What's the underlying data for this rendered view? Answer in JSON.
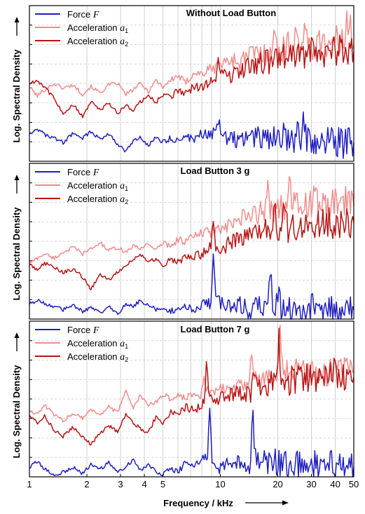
{
  "chart_data": {
    "type": "line",
    "xscale": "log",
    "xlim": [
      1,
      50
    ],
    "x_ticks": [
      1,
      2,
      3,
      4,
      5,
      10,
      20,
      30,
      40,
      50
    ],
    "xlabel": "Frequency / kHz",
    "ylabel": "Log. Spectral Density",
    "y_tick_labels": false,
    "grid": true,
    "legend_position": "top-left",
    "colors": {
      "force": "#1f1fbf",
      "acc1": "#f08c8c",
      "acc2": "#b81414"
    },
    "legend": {
      "force": {
        "name": "Force ",
        "symbol": "F"
      },
      "acc1": {
        "name": "Acceleration ",
        "symbol": "a",
        "sub": "1"
      },
      "acc2": {
        "name": "Acceleration ",
        "symbol": "a",
        "sub": "2"
      }
    },
    "panels": [
      {
        "title": "Without Load Button",
        "ylim": [
          0,
          10
        ],
        "series": [
          {
            "key": "acc1",
            "peaks": [
              [
                9.8,
                0.5
              ],
              [
                19.2,
                0.6
              ],
              [
                25,
                1.6
              ],
              [
                28,
                0.8
              ],
              [
                34.5,
                0.9
              ],
              [
                40,
                0.7
              ],
              [
                46,
                2.1
              ],
              [
                48,
                1.5
              ]
            ],
            "x": [
              1,
              1.1,
              1.2,
              1.35,
              1.5,
              1.7,
              1.9,
              2.1,
              2.35,
              2.6,
              2.9,
              3.2,
              3.5,
              3.8,
              4.2,
              4.6,
              5,
              5.5,
              6,
              6.6,
              7.2,
              8,
              8.8,
              9.6,
              10.5,
              11.5,
              12.5,
              14,
              15.5,
              17,
              18.5,
              20,
              22,
              24,
              26,
              28,
              30,
              33,
              36,
              40,
              44,
              48,
              50
            ],
            "y": [
              4.8,
              4.2,
              4.6,
              5.0,
              4.7,
              4.9,
              4.3,
              4.8,
              4.4,
              4.9,
              5.0,
              4.3,
              4.6,
              5.0,
              4.5,
              5.2,
              4.8,
              5.2,
              5.5,
              5.0,
              5.7,
              5.6,
              5.9,
              6.0,
              6.3,
              6.6,
              6.3,
              6.8,
              7.0,
              6.8,
              7.4,
              7.2,
              7.3,
              7.5,
              7.2,
              7.6,
              7.4,
              7.6,
              7.5,
              7.3,
              7.7,
              7.8,
              7.5
            ]
          },
          {
            "key": "acc2",
            "peaks": [
              [
                9.8,
                1.2
              ],
              [
                19.5,
                1.8
              ],
              [
                30,
                0.5
              ],
              [
                42,
                0.6
              ]
            ],
            "x": [
              1,
              1.1,
              1.2,
              1.35,
              1.5,
              1.7,
              1.9,
              2.1,
              2.35,
              2.6,
              2.9,
              3.2,
              3.5,
              3.8,
              4.2,
              4.6,
              5,
              5.5,
              6,
              6.6,
              7.2,
              8,
              8.8,
              9.6,
              10.5,
              11.5,
              12.5,
              14,
              15.5,
              17,
              18.5,
              20,
              22,
              24,
              26,
              28,
              30,
              33,
              36,
              40,
              44,
              48,
              50
            ],
            "y": [
              5.0,
              5.2,
              4.8,
              4.0,
              3.1,
              3.6,
              2.9,
              3.8,
              3.3,
              3.7,
              3.1,
              3.6,
              3.3,
              3.8,
              4.2,
              3.8,
              4.3,
              4.1,
              4.6,
              4.3,
              4.8,
              4.7,
              5.2,
              5.4,
              5.6,
              5.5,
              5.9,
              6.0,
              6.2,
              6.4,
              6.3,
              6.6,
              6.7,
              6.6,
              7.0,
              6.8,
              7.0,
              7.1,
              6.9,
              7.1,
              7.0,
              7.3,
              7.0
            ]
          },
          {
            "key": "force",
            "peaks": [
              [
                9.8,
                0.8
              ],
              [
                27.5,
                1.2
              ]
            ],
            "x": [
              1,
              1.1,
              1.2,
              1.35,
              1.5,
              1.7,
              1.9,
              2.1,
              2.35,
              2.6,
              2.9,
              3.2,
              3.5,
              3.8,
              4.2,
              4.6,
              5,
              5.5,
              6,
              6.6,
              7.2,
              8,
              8.8,
              9.6,
              10.5,
              11.5,
              12.5,
              14,
              15.5,
              17,
              18.5,
              20,
              22,
              24,
              26,
              28,
              30,
              33,
              36,
              40,
              44,
              48,
              50
            ],
            "y": [
              1.8,
              2.1,
              1.7,
              1.5,
              1.2,
              1.8,
              1.5,
              1.9,
              1.4,
              1.8,
              1.1,
              0.6,
              1.3,
              1.5,
              1.0,
              1.6,
              1.2,
              1.5,
              1.3,
              1.6,
              1.4,
              1.8,
              1.6,
              2.0,
              1.5,
              1.6,
              1.3,
              1.5,
              1.6,
              1.4,
              1.5,
              1.3,
              1.6,
              1.4,
              1.7,
              1.4,
              1.3,
              1.5,
              1.2,
              1.3,
              1.1,
              1.3,
              1.2
            ]
          }
        ]
      },
      {
        "title": "Load Button 3 g",
        "ylim": [
          0,
          10
        ],
        "series": [
          {
            "key": "acc1",
            "peaks": [
              [
                17.8,
                1.6
              ],
              [
                19.8,
                1.0
              ],
              [
                23,
                1.2
              ],
              [
                31,
                0.5
              ]
            ],
            "x": [
              1,
              1.1,
              1.2,
              1.35,
              1.5,
              1.7,
              1.9,
              2.1,
              2.35,
              2.6,
              2.9,
              3.2,
              3.5,
              3.8,
              4.2,
              4.6,
              5,
              5.5,
              6,
              6.6,
              7.2,
              8,
              8.8,
              9.6,
              10.5,
              11.5,
              12.5,
              14,
              15.5,
              17,
              18.5,
              20,
              22,
              24,
              26,
              28,
              30,
              33,
              36,
              40,
              44,
              48,
              50
            ],
            "y": [
              3.6,
              3.9,
              4.2,
              3.9,
              4.3,
              4.6,
              4.2,
              4.5,
              4.9,
              4.4,
              4.6,
              4.3,
              4.7,
              4.5,
              4.9,
              4.4,
              4.9,
              4.7,
              5.1,
              5.0,
              5.3,
              5.5,
              5.6,
              5.7,
              5.8,
              6.0,
              6.4,
              6.5,
              6.8,
              6.9,
              7.1,
              7.0,
              7.2,
              7.4,
              7.2,
              7.5,
              7.3,
              7.5,
              7.2,
              7.4,
              7.6,
              7.5,
              7.3
            ]
          },
          {
            "key": "acc2",
            "peaks": [
              [
                9.2,
                1.9
              ],
              [
                19.2,
                1.5
              ],
              [
                21.5,
                1.3
              ],
              [
                32,
                0.4
              ]
            ],
            "x": [
              1,
              1.1,
              1.2,
              1.35,
              1.5,
              1.7,
              1.9,
              2.1,
              2.35,
              2.6,
              2.9,
              3.2,
              3.5,
              3.8,
              4.2,
              4.6,
              5,
              5.5,
              6,
              6.6,
              7.2,
              8,
              8.8,
              9.6,
              10.5,
              11.5,
              12.5,
              14,
              15.5,
              17,
              18.5,
              20,
              22,
              24,
              26,
              28,
              30,
              33,
              36,
              40,
              44,
              48,
              50
            ],
            "y": [
              3.5,
              3.2,
              3.6,
              3.3,
              3.0,
              3.2,
              2.7,
              1.9,
              2.9,
              2.5,
              3.0,
              3.5,
              3.8,
              4.2,
              3.6,
              3.9,
              3.5,
              3.8,
              3.7,
              4.0,
              3.9,
              4.2,
              4.7,
              4.5,
              4.6,
              5.0,
              5.3,
              5.2,
              5.6,
              5.9,
              5.8,
              5.5,
              5.8,
              6.0,
              5.9,
              5.8,
              6.2,
              6.0,
              6.3,
              6.0,
              6.2,
              6.1,
              6.2
            ]
          },
          {
            "key": "force",
            "peaks": [
              [
                9.2,
                2.8
              ],
              [
                18.2,
                2.4
              ],
              [
                20.2,
                1.6
              ]
            ],
            "x": [
              1,
              1.1,
              1.2,
              1.35,
              1.5,
              1.7,
              1.9,
              2.1,
              2.35,
              2.6,
              2.9,
              3.2,
              3.5,
              3.8,
              4.2,
              4.6,
              5,
              5.5,
              6,
              6.6,
              7.2,
              8,
              8.8,
              9.6,
              10.5,
              11.5,
              12.5,
              14,
              15.5,
              17,
              18.5,
              20,
              22,
              24,
              26,
              28,
              30,
              33,
              36,
              40,
              44,
              48,
              50
            ],
            "y": [
              1.0,
              1.2,
              1.0,
              0.8,
              0.6,
              0.9,
              0.5,
              0.7,
              0.4,
              0.8,
              0.3,
              1.0,
              0.8,
              1.2,
              0.9,
              0.6,
              0.8,
              0.5,
              0.7,
              0.9,
              0.6,
              0.9,
              1.0,
              1.3,
              0.8,
              0.7,
              0.9,
              0.6,
              0.8,
              0.7,
              1.0,
              0.8,
              0.6,
              0.9,
              0.7,
              0.6,
              0.8,
              0.5,
              0.7,
              0.4,
              0.6,
              0.5,
              0.6
            ]
          }
        ]
      },
      {
        "title": "Load Button 7 g",
        "ylim": [
          0,
          10
        ],
        "series": [
          {
            "key": "acc1",
            "peaks": [
              [
                8.2,
                1.4
              ],
              [
                14.5,
                1.3
              ],
              [
                20.5,
                2.4
              ],
              [
                25,
                0.8
              ]
            ],
            "x": [
              1,
              1.1,
              1.2,
              1.35,
              1.5,
              1.7,
              1.9,
              2.1,
              2.35,
              2.6,
              2.9,
              3.2,
              3.5,
              3.8,
              4.2,
              4.6,
              5,
              5.5,
              6,
              6.6,
              7.2,
              8,
              8.8,
              9.6,
              10.5,
              11.5,
              12.5,
              14,
              15.5,
              17,
              18.5,
              20,
              22,
              24,
              26,
              28,
              30,
              33,
              36,
              40,
              44,
              48,
              50
            ],
            "y": [
              4.3,
              4.0,
              4.6,
              4.0,
              3.6,
              4.1,
              3.8,
              4.3,
              4.0,
              4.5,
              4.1,
              5.6,
              4.4,
              5.2,
              4.6,
              4.8,
              5.3,
              5.0,
              5.2,
              5.1,
              5.4,
              5.2,
              5.6,
              5.5,
              5.8,
              5.6,
              6.0,
              6.2,
              6.3,
              6.1,
              6.5,
              6.4,
              6.6,
              6.7,
              6.5,
              6.8,
              6.6,
              6.9,
              6.7,
              7.0,
              6.9,
              7.1,
              6.8
            ]
          },
          {
            "key": "acc2",
            "peaks": [
              [
                8.5,
                2.4
              ],
              [
                15,
                1.2
              ],
              [
                20.3,
                2.9
              ]
            ],
            "x": [
              1,
              1.1,
              1.2,
              1.35,
              1.5,
              1.7,
              1.9,
              2.1,
              2.35,
              2.6,
              2.9,
              3.2,
              3.5,
              3.8,
              4.2,
              4.6,
              5,
              5.5,
              6,
              6.6,
              7.2,
              8,
              8.8,
              9.6,
              10.5,
              11.5,
              12.5,
              14,
              15.5,
              17,
              18.5,
              20,
              22,
              24,
              26,
              28,
              30,
              33,
              36,
              40,
              44,
              48,
              50
            ],
            "y": [
              4.0,
              3.5,
              3.9,
              3.0,
              2.6,
              3.2,
              2.5,
              2.1,
              2.8,
              3.3,
              2.9,
              4.0,
              3.5,
              3.1,
              2.8,
              3.9,
              3.5,
              4.2,
              4.0,
              4.5,
              4.3,
              4.6,
              5.2,
              5.0,
              5.3,
              5.2,
              5.4,
              5.3,
              5.6,
              5.5,
              5.9,
              6.0,
              6.1,
              6.3,
              6.2,
              6.4,
              6.3,
              6.5,
              6.4,
              6.7,
              6.5,
              6.6,
              6.4
            ]
          },
          {
            "key": "force",
            "peaks": [
              [
                8.8,
                3.3
              ],
              [
                14.8,
                3.1
              ]
            ],
            "x": [
              1,
              1.1,
              1.2,
              1.35,
              1.5,
              1.7,
              1.9,
              2.1,
              2.35,
              2.6,
              2.9,
              3.2,
              3.5,
              3.8,
              4.2,
              4.6,
              5,
              5.5,
              6,
              6.6,
              7.2,
              8,
              8.8,
              9.6,
              10.5,
              11.5,
              12.5,
              14,
              15.5,
              17,
              18.5,
              20,
              22,
              24,
              26,
              28,
              30,
              33,
              36,
              40,
              44,
              48,
              50
            ],
            "y": [
              0.6,
              1.0,
              0.5,
              0.1,
              0.3,
              0.6,
              0.2,
              0.8,
              0.5,
              0.9,
              0.3,
              0.7,
              1.1,
              0.4,
              0.8,
              0.4,
              0.2,
              0.6,
              0.3,
              0.9,
              0.7,
              1.2,
              1.0,
              0.5,
              0.9,
              0.6,
              0.9,
              0.7,
              1.1,
              0.9,
              1.0,
              0.8,
              0.9,
              0.7,
              0.8,
              0.6,
              0.8,
              0.7,
              0.9,
              0.6,
              0.8,
              0.5,
              0.6
            ]
          }
        ]
      }
    ]
  }
}
